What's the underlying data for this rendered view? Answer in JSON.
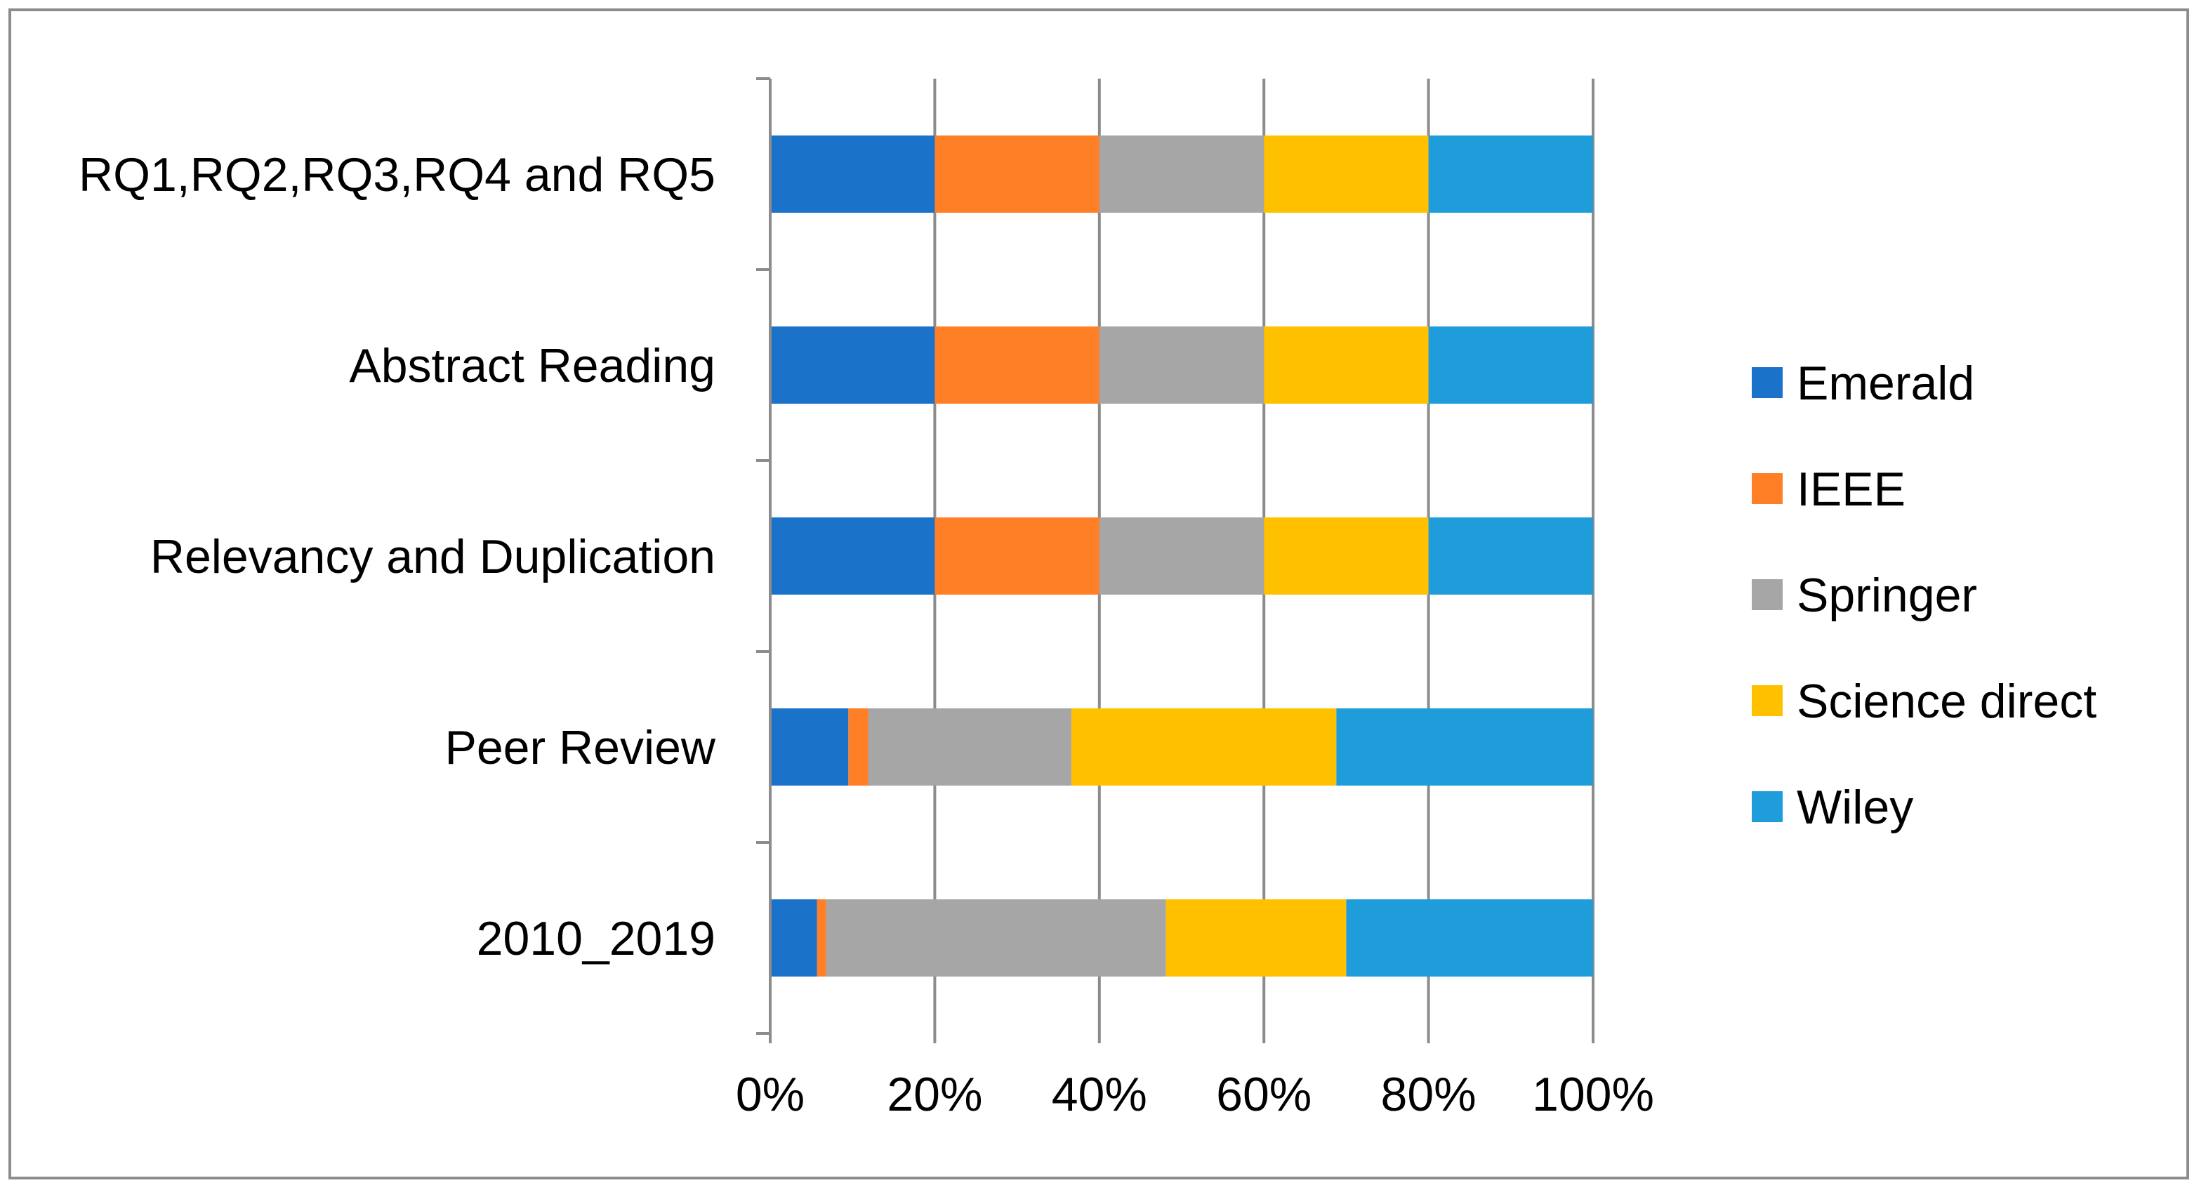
{
  "chart_data": {
    "type": "bar",
    "orientation": "horizontal",
    "stacking": "percent",
    "title": "",
    "xlabel": "",
    "ylabel": "",
    "xlim": [
      0,
      100
    ],
    "grid": true,
    "legend_position": "right",
    "categories": [
      "RQ1,RQ2,RQ3,RQ4 and RQ5",
      "Abstract Reading",
      "Relevancy and Duplication",
      "Peer Review",
      "2010_2019"
    ],
    "x_ticks": [
      "0%",
      "20%",
      "40%",
      "60%",
      "80%",
      "100%"
    ],
    "series": [
      {
        "name": "Emerald",
        "color": "#1B72C9",
        "values": [
          20,
          20,
          20,
          9.5,
          5.7
        ]
      },
      {
        "name": "IEEE",
        "color": "#FF7F27",
        "values": [
          20,
          20,
          20,
          2.4,
          1.1
        ]
      },
      {
        "name": "Springer",
        "color": "#A6A6A6",
        "values": [
          20,
          20,
          20,
          24.7,
          41.3
        ]
      },
      {
        "name": "Science direct",
        "color": "#FFC000",
        "values": [
          20,
          20,
          20,
          32.2,
          21.9
        ]
      },
      {
        "name": "Wiley",
        "color": "#1F9DDB",
        "values": [
          20,
          20,
          20,
          31.2,
          30.0
        ]
      }
    ]
  }
}
